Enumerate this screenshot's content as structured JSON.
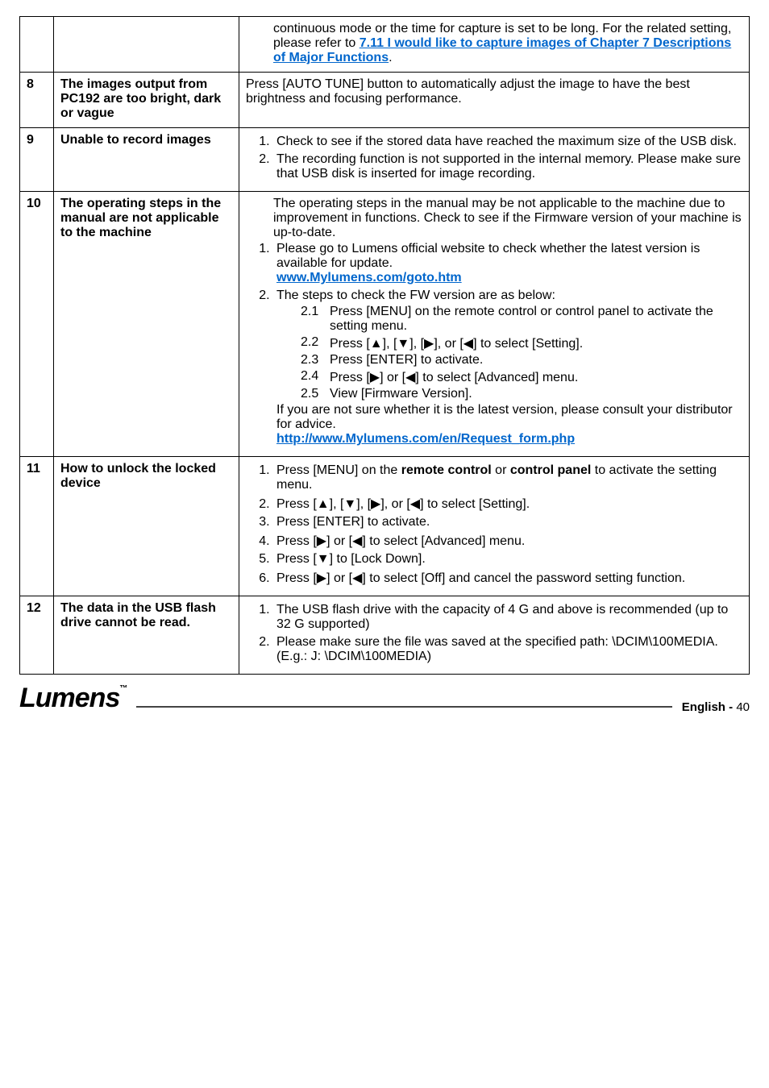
{
  "rows": {
    "r7_cont": {
      "body_pre": "continuous mode or the time for capture is set to be long. For the related setting, please refer to ",
      "link1": "7.11 I would like to capture images of Chapter 7 Descriptions of Major Functions",
      "body_post": "."
    },
    "r8": {
      "num": "8",
      "title": "The images output from PC192 are too bright, dark or vague",
      "body": "Press [AUTO TUNE] button to automatically adjust the image to have the best brightness and focusing performance."
    },
    "r9": {
      "num": "9",
      "title": "Unable to record images",
      "item1": "Check to see if the stored data have reached the maximum size of the USB disk.",
      "item2": "The recording function is not supported in the internal memory. Please make sure that USB disk is inserted for image recording."
    },
    "r10": {
      "num": "10",
      "title": "The operating steps in the manual are not applicable to the machine",
      "lead": "The operating steps in the manual may be not applicable to the machine due to improvement in functions. Check to see if the Firmware version of your machine is up-to-date.",
      "i1a": "Please go to Lumens official website to check whether the latest version is available for update.",
      "i1link": "www.Mylumens.com/goto.htm",
      "i2": "The steps to check the FW version are as below:",
      "s21": "Press [MENU] on the remote control or control panel to activate the setting menu.",
      "s22": "Press [▲], [▼], [▶], or [◀] to select [Setting].",
      "s23": "Press [ENTER] to activate.",
      "s24": "Press [▶] or [◀] to select [Advanced] menu.",
      "s25": "View [Firmware Version].",
      "trail": "If you are not sure whether it is the latest version, please consult your distributor for advice.",
      "traillink": "http://www.Mylumens.com/en/Request_form.php"
    },
    "r11": {
      "num": "11",
      "title": "How to unlock the locked device",
      "i1a": "Press [MENU] on the ",
      "i1b": "remote control",
      "i1c": " or ",
      "i1d": "control panel",
      "i1e": " to activate the setting menu.",
      "i2": "Press [▲], [▼], [▶], or [◀] to select [Setting].",
      "i3": "Press [ENTER] to activate.",
      "i4": "Press [▶] or [◀] to select [Advanced] menu.",
      "i5": "Press [▼] to [Lock Down].",
      "i6": "Press [▶] or [◀] to select [Off] and cancel the password setting function."
    },
    "r12": {
      "num": "12",
      "title": "The data in the USB flash drive cannot be read.",
      "i1": "The USB flash drive with the capacity of 4 G and above is recommended (up to 32 G supported)",
      "i2": "Please make sure the file was saved at the specified path: \\DCIM\\100MEDIA. (E.g.: J: \\DCIM\\100MEDIA)"
    }
  },
  "footer": {
    "logo": "Lumens",
    "tm": "™",
    "lang": "English -",
    "page": "40"
  }
}
